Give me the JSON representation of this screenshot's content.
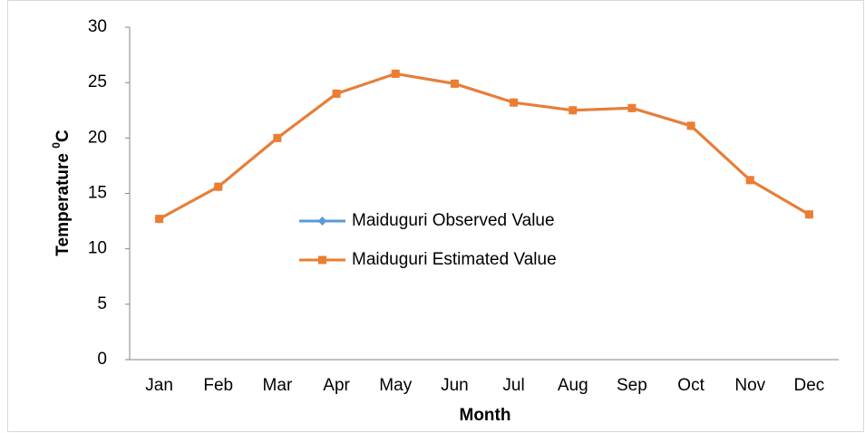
{
  "chart_data": {
    "type": "line",
    "xlabel": "Month",
    "ylabel": "Temperature",
    "ylabel_superscript": "0",
    "ylabel_unit": "C",
    "categories": [
      "Jan",
      "Feb",
      "Mar",
      "Apr",
      "May",
      "Jun",
      "Jul",
      "Aug",
      "Sep",
      "Oct",
      "Nov",
      "Dec"
    ],
    "series": [
      {
        "name": "Maiduguri Observed Value",
        "color": "#5b9bd5",
        "marker": "diamond",
        "values": [
          12.7,
          15.6,
          20.0,
          24.0,
          25.8,
          24.9,
          23.2,
          22.5,
          22.7,
          21.1,
          16.2,
          13.1
        ]
      },
      {
        "name": "Maiduguri Estimated Value",
        "color": "#ed7d31",
        "marker": "square",
        "values": [
          12.7,
          15.6,
          20.0,
          24.0,
          25.8,
          24.9,
          23.2,
          22.5,
          22.7,
          21.1,
          16.2,
          13.1
        ]
      }
    ],
    "ylim": [
      0,
      30
    ],
    "yticks": [
      0,
      5,
      10,
      15,
      20,
      25,
      30
    ],
    "grid": false
  }
}
